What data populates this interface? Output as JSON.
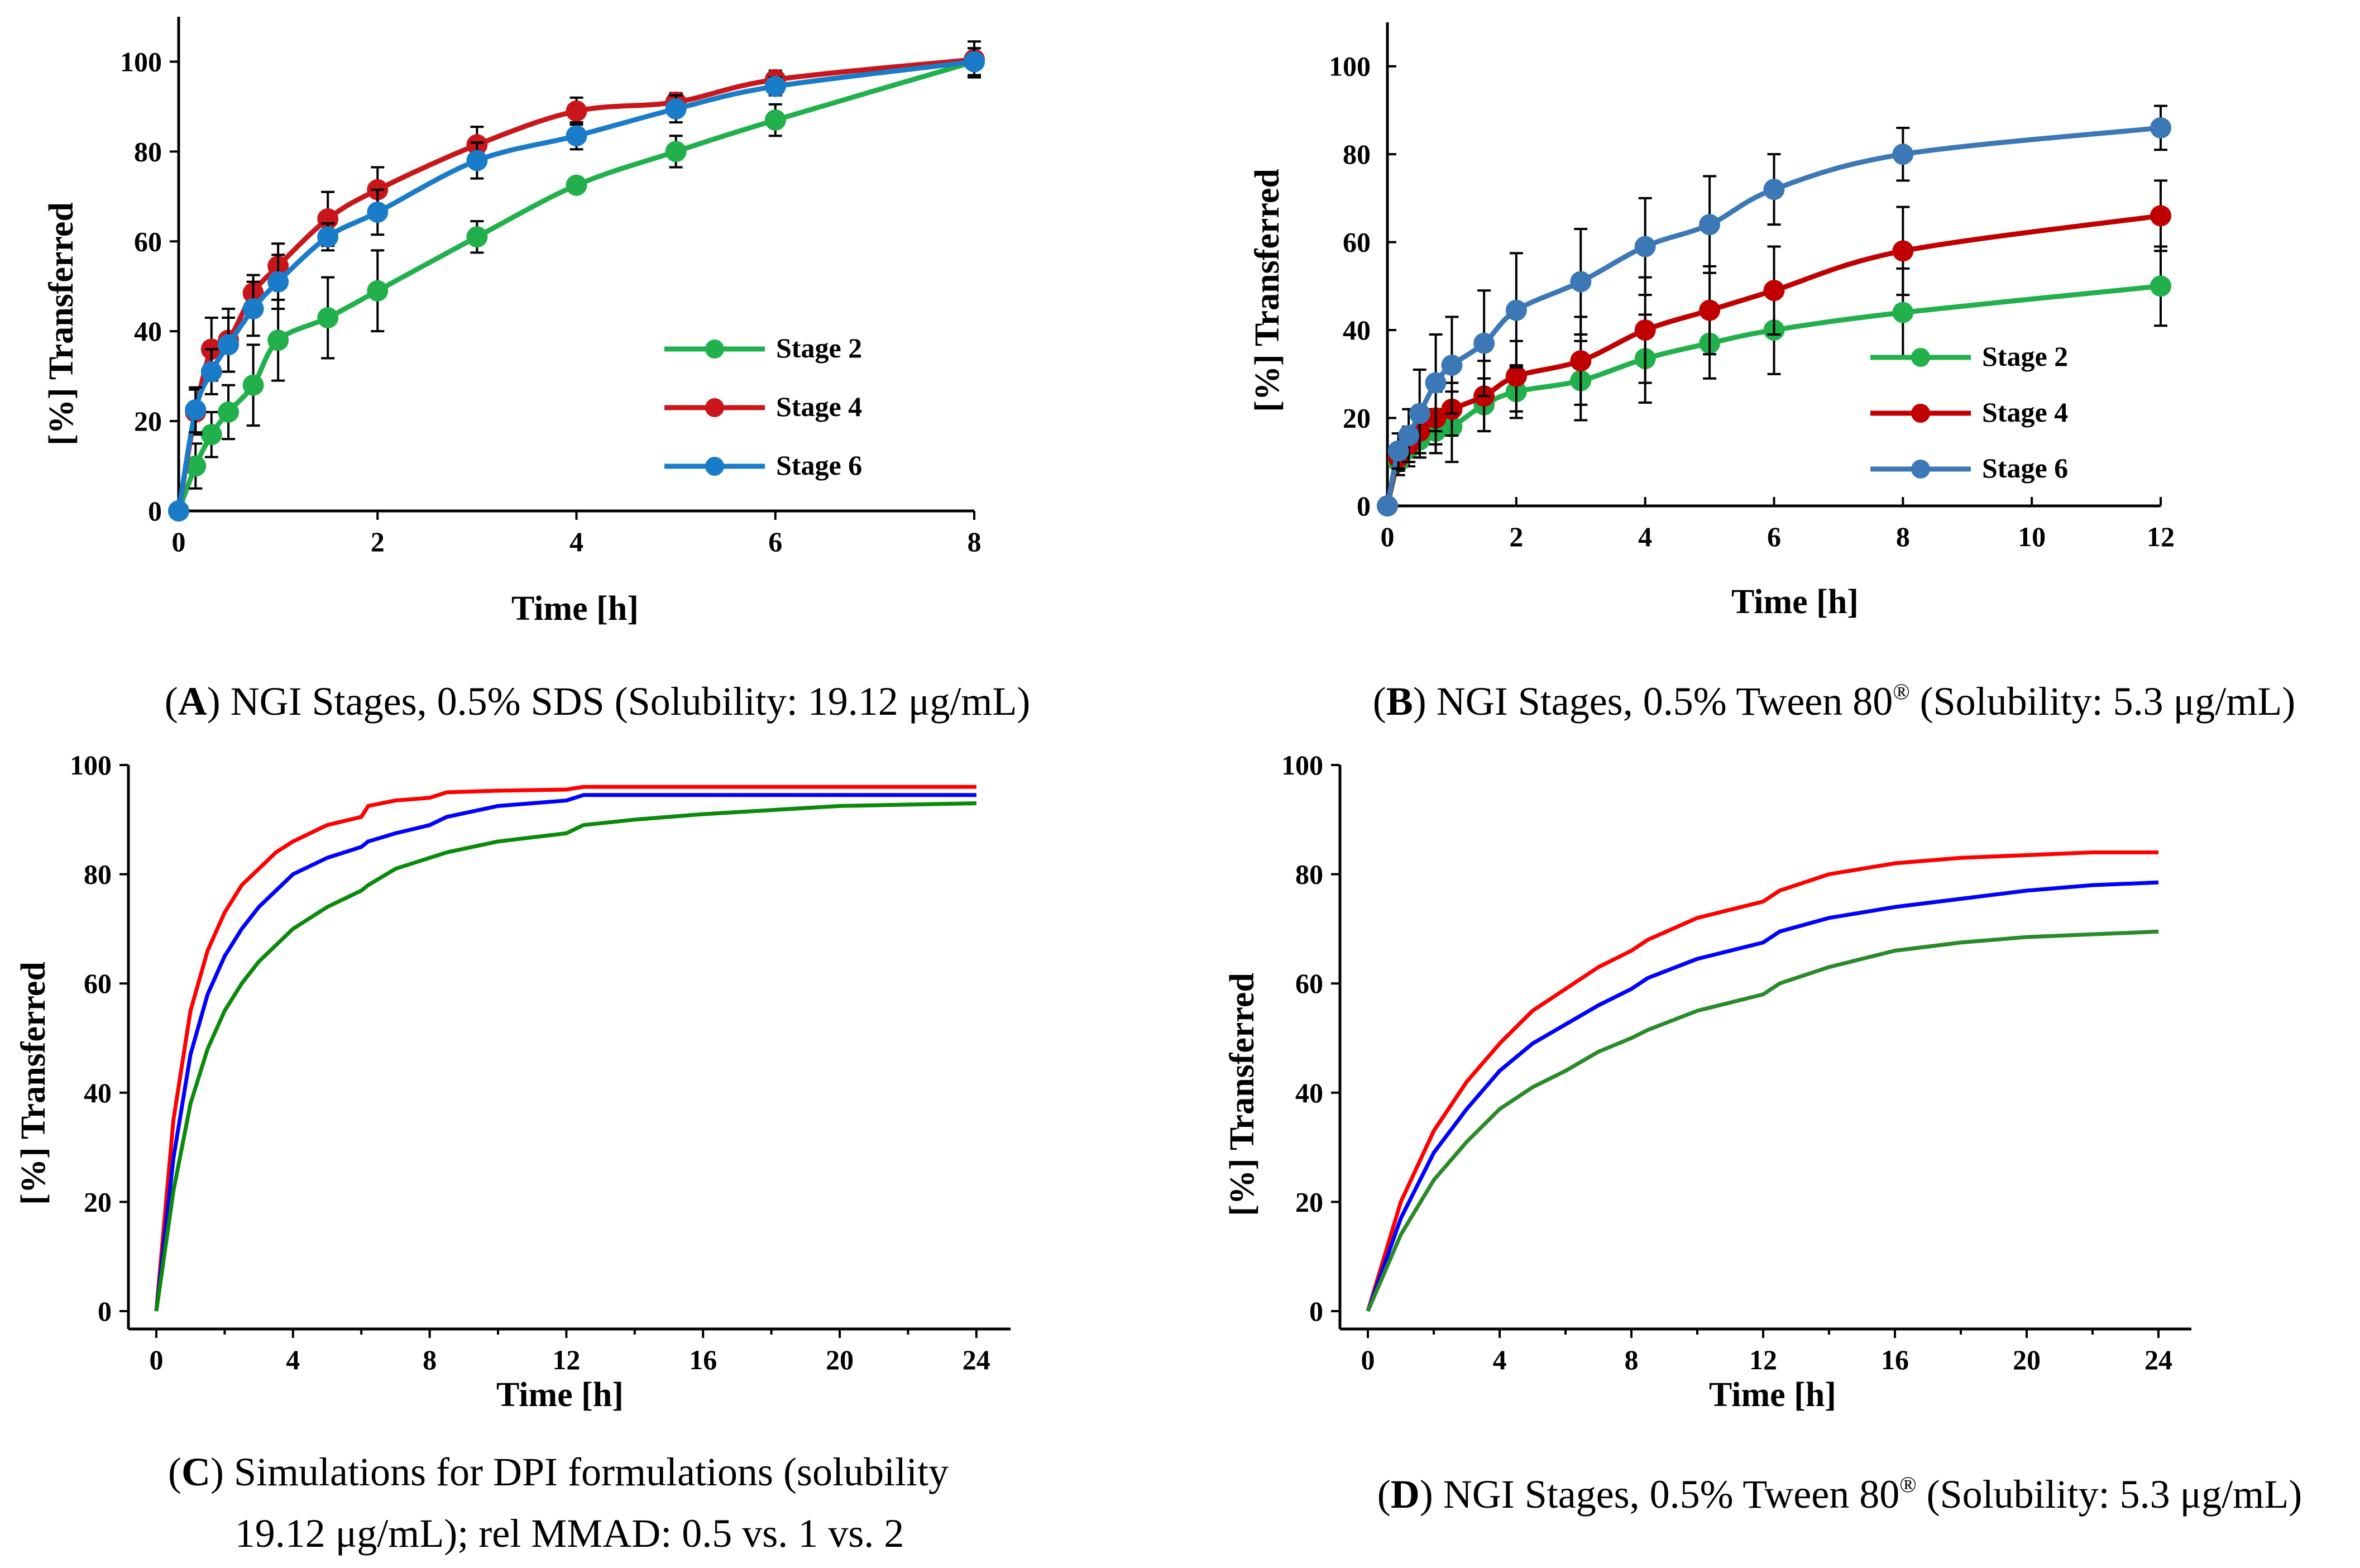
{
  "chart_data": [
    {
      "id": "A",
      "type": "line",
      "xlabel": "Time [h]",
      "ylabel": "[%] Transferred",
      "xlim": [
        0,
        8
      ],
      "ylim": [
        0,
        110
      ],
      "xticks": [
        0,
        2,
        4,
        6,
        8
      ],
      "yticks": [
        0,
        20,
        40,
        60,
        80,
        100
      ],
      "markers": true,
      "legend_position": "center-right",
      "x": [
        0,
        0.17,
        0.33,
        0.5,
        0.75,
        1,
        1.5,
        2,
        3,
        4,
        5,
        6,
        8
      ],
      "series": [
        {
          "name": "Stage 2",
          "color": "#21b04b",
          "values": [
            0,
            10,
            17,
            22,
            28,
            38,
            43,
            49,
            61,
            72.5,
            80,
            87,
            100
          ],
          "errors": [
            0,
            5,
            5,
            6,
            9,
            9,
            9,
            9,
            3.5,
            1.5,
            3.5,
            3.5,
            3
          ]
        },
        {
          "name": "Stage 4",
          "color": "#c9161b",
          "values": [
            0,
            22,
            36,
            38,
            48.5,
            54.5,
            65,
            71.5,
            81.5,
            89,
            91,
            96,
            100.5
          ],
          "errors": [
            0,
            5,
            7,
            7,
            4,
            5,
            6,
            5,
            4,
            3,
            2,
            2,
            4
          ]
        },
        {
          "name": "Stage 6",
          "color": "#1a7bc8",
          "values": [
            0,
            22.5,
            31,
            37,
            45,
            51,
            61,
            66.5,
            78,
            83.5,
            89.5,
            94.5,
            100
          ],
          "errors": [
            0,
            5,
            5,
            6,
            6,
            6,
            3,
            5,
            4,
            3,
            3,
            2,
            3
          ]
        }
      ],
      "caption_letter": "A",
      "caption_text": "NGI Stages, 0.5% SDS (Solubility: 19.12 μg/mL)"
    },
    {
      "id": "B",
      "type": "line",
      "xlabel": "Time [h]",
      "ylabel": "[%] Transferred",
      "xlim": [
        0,
        12
      ],
      "ylim": [
        0,
        110
      ],
      "xticks": [
        0,
        2,
        4,
        6,
        8,
        10,
        12
      ],
      "yticks": [
        0,
        20,
        40,
        60,
        80,
        100
      ],
      "markers": true,
      "legend_position": "bottom-right",
      "x": [
        0,
        0.17,
        0.33,
        0.5,
        0.75,
        1,
        1.5,
        2,
        3,
        4,
        5,
        6,
        8,
        12
      ],
      "series": [
        {
          "name": "Stage 2",
          "color": "#21b04b",
          "values": [
            0,
            10,
            13,
            15,
            17,
            18,
            23,
            26,
            28.5,
            33.5,
            37,
            40,
            44,
            50
          ],
          "errors": [
            0,
            3,
            4,
            4,
            5,
            8,
            6,
            6,
            9,
            10,
            8,
            10,
            10,
            9
          ]
        },
        {
          "name": "Stage 4",
          "color": "#c00000",
          "values": [
            0,
            11,
            14,
            17,
            20,
            22,
            25,
            29.5,
            33,
            40,
            44.5,
            49,
            58,
            66
          ],
          "errors": [
            0,
            3,
            4,
            5,
            6,
            6,
            8,
            8,
            10,
            12,
            10,
            10,
            10,
            8
          ]
        },
        {
          "name": "Stage 6",
          "color": "#3c78b6",
          "values": [
            0,
            12.5,
            16,
            21,
            28,
            32,
            37,
            44.5,
            51,
            59,
            64,
            72,
            80,
            86
          ],
          "errors": [
            0,
            4,
            6,
            10,
            11,
            11,
            12,
            13,
            12,
            11,
            11,
            8,
            6,
            5
          ]
        }
      ],
      "caption_letter": "B",
      "caption_text": "NGI Stages, 0.5% Tween 80",
      "caption_sup": "®",
      "caption_tail": " (Solubility: 5.3 μg/mL)"
    },
    {
      "id": "C",
      "type": "line",
      "xlabel": "Time [h]",
      "ylabel": "[%] Transferred",
      "xlim": [
        0,
        25
      ],
      "ylim": [
        0,
        100
      ],
      "xticks": [
        0,
        4,
        8,
        12,
        16,
        20,
        24
      ],
      "yticks": [
        0,
        20,
        40,
        60,
        80,
        100
      ],
      "markers": false,
      "x": [
        0,
        0.5,
        1,
        1.5,
        2,
        2.5,
        3,
        3.5,
        4,
        5,
        6,
        6.2,
        7,
        8,
        8.5,
        10,
        12,
        12.5,
        14,
        16,
        20,
        24
      ],
      "series": [
        {
          "name": "red",
          "color": "#ff0000",
          "values": [
            0,
            35,
            55,
            66,
            73,
            78,
            81,
            84,
            86,
            89,
            90.5,
            92.5,
            93.5,
            94,
            95,
            95.3,
            95.5,
            96,
            96,
            96,
            96,
            96
          ]
        },
        {
          "name": "blue",
          "color": "#0000ff",
          "values": [
            0,
            28,
            47,
            58,
            65,
            70,
            74,
            77,
            80,
            83,
            85,
            86,
            87.5,
            89,
            90.5,
            92.5,
            93.5,
            94.5,
            94.5,
            94.5,
            94.5,
            94.5
          ]
        },
        {
          "name": "green",
          "color": "#0a8a0a",
          "values": [
            0,
            22,
            38,
            48,
            55,
            60,
            64,
            67,
            70,
            74,
            77,
            78,
            81,
            83,
            84,
            86,
            87.5,
            89,
            90,
            91,
            92.5,
            93
          ]
        }
      ],
      "caption_letter": "C",
      "caption_text": "Simulations for DPI formulations (solubility",
      "caption_line2": "19.12 μg/mL); rel MMAD: 0.5 vs. 1 vs. 2"
    },
    {
      "id": "D",
      "type": "line",
      "xlabel": "Time [h]",
      "ylabel": "[%] Transferred",
      "xlim": [
        0,
        25
      ],
      "ylim": [
        0,
        100
      ],
      "xticks": [
        0,
        4,
        8,
        12,
        16,
        20,
        24
      ],
      "yticks": [
        0,
        20,
        40,
        60,
        80,
        100
      ],
      "markers": false,
      "x": [
        0,
        1,
        2,
        3,
        4,
        5,
        6,
        7,
        8,
        8.5,
        10,
        12,
        12.5,
        14,
        16,
        18,
        20,
        22,
        24
      ],
      "series": [
        {
          "name": "red",
          "color": "#ff0000",
          "values": [
            0,
            20,
            33,
            42,
            49,
            55,
            59,
            63,
            66,
            68,
            72,
            75,
            77,
            80,
            82,
            83,
            83.5,
            84,
            84
          ]
        },
        {
          "name": "blue",
          "color": "#0000ff",
          "values": [
            0,
            17,
            29,
            37,
            44,
            49,
            52.5,
            56,
            59,
            61,
            64.5,
            67.5,
            69.5,
            72,
            74,
            75.5,
            77,
            78,
            78.5
          ]
        },
        {
          "name": "green",
          "color": "#2a8a2a",
          "values": [
            0,
            14,
            24,
            31,
            37,
            41,
            44,
            47.5,
            50,
            51.5,
            55,
            58,
            60,
            63,
            66,
            67.5,
            68.5,
            69,
            69.5
          ]
        }
      ],
      "caption_letter": "D",
      "caption_text": "NGI Stages, 0.5% Tween 80",
      "caption_sup": "®",
      "caption_tail": " (Solubility: 5.3 μg/mL)"
    }
  ]
}
